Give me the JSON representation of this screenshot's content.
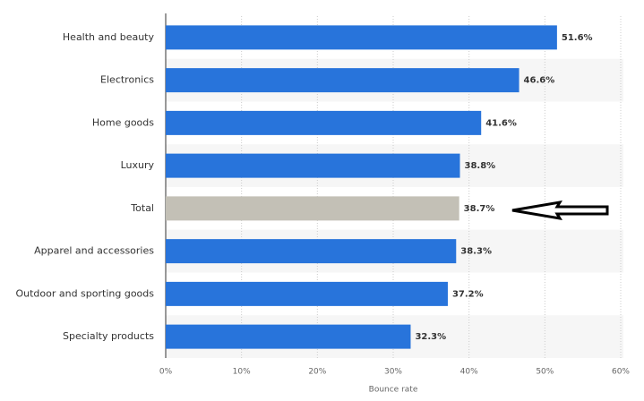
{
  "chart_data": {
    "type": "hbar",
    "categories": [
      "Health and beauty",
      "Electronics",
      "Home goods",
      "Luxury",
      "Total",
      "Apparel and accessories",
      "Outdoor and sporting goods",
      "Specialty products"
    ],
    "values": [
      51.6,
      46.6,
      41.6,
      38.8,
      38.7,
      38.3,
      37.2,
      32.3
    ],
    "value_labels": [
      "51.6%",
      "46.6%",
      "41.6%",
      "38.8%",
      "38.7%",
      "38.3%",
      "37.2%",
      "32.3%"
    ],
    "colors": [
      "#2874db",
      "#2874db",
      "#2874db",
      "#2874db",
      "#c3c0b6",
      "#2874db",
      "#2874db",
      "#2874db"
    ],
    "xlim": [
      0,
      60
    ],
    "xticks": [
      {
        "value": 0,
        "label": "0%"
      },
      {
        "value": 10,
        "label": "10%"
      },
      {
        "value": 20,
        "label": "20%"
      },
      {
        "value": 30,
        "label": "30%"
      },
      {
        "value": 40,
        "label": "40%"
      },
      {
        "value": 50,
        "label": "50%"
      },
      {
        "value": 60,
        "label": "60%"
      }
    ],
    "xlabel": "Bounce rate",
    "grid": true
  }
}
